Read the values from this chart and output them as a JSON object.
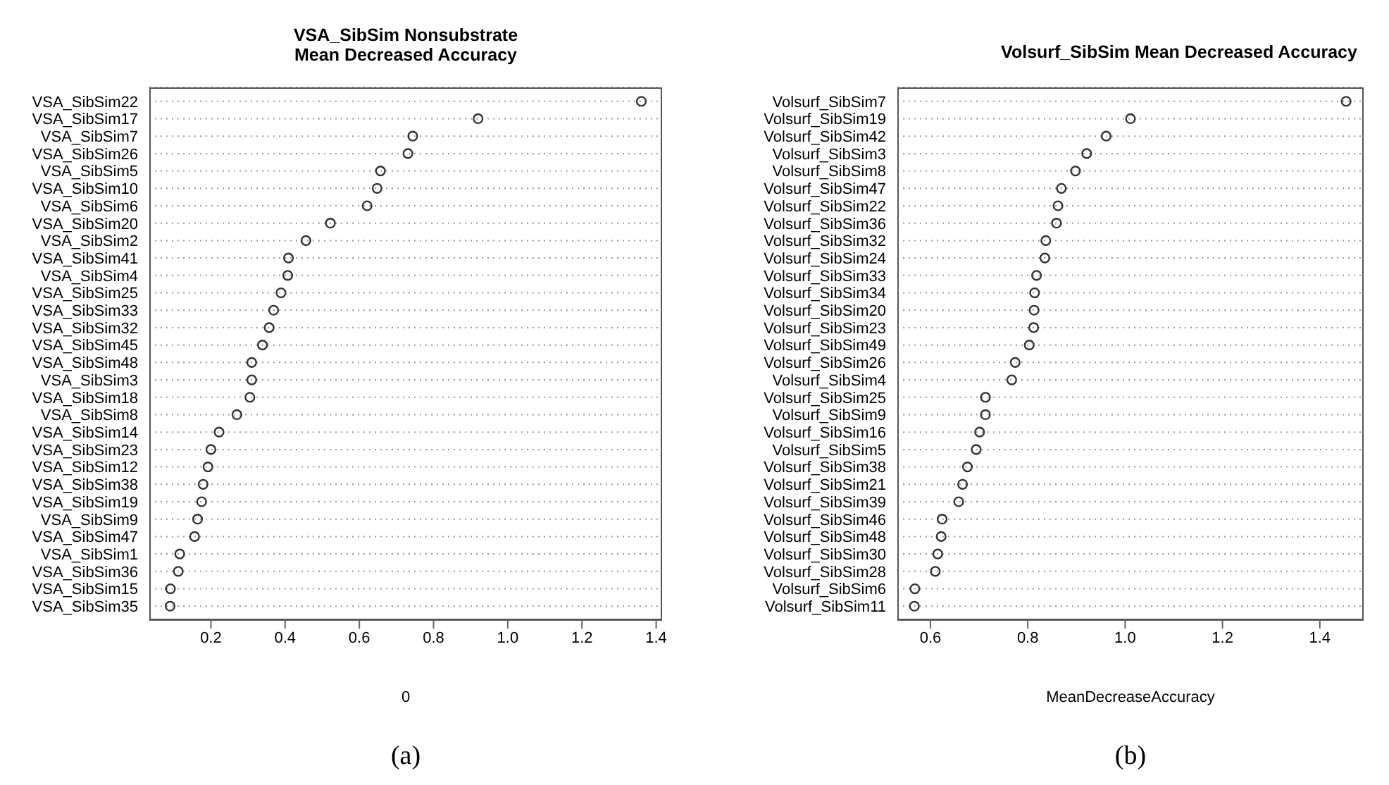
{
  "chart_data": [
    {
      "type": "scatter",
      "orientation": "horizontal",
      "title": "VSA_SibSim Nonsubstrate Mean Decreased Accuracy",
      "xlabel": "0",
      "annotations": [
        "(a)"
      ],
      "marker": "circle",
      "grid": "y",
      "color": "#333333",
      "categories": [
        "VSA_SibSim22",
        "VSA_SibSim17",
        "VSA_SibSim7",
        "VSA_SibSim26",
        "VSA_SibSim5",
        "VSA_SibSim10",
        "VSA_SibSim6",
        "VSA_SibSim20",
        "VSA_SibSim2",
        "VSA_SibSim41",
        "VSA_SibSim4",
        "VSA_SibSim25",
        "VSA_SibSim33",
        "VSA_SibSim32",
        "VSA_SibSim45",
        "VSA_SibSim48",
        "VSA_SibSim3",
        "VSA_SibSim18",
        "VSA_SibSim8",
        "VSA_SibSim14",
        "VSA_SibSim23",
        "VSA_SibSim12",
        "VSA_SibSim38",
        "VSA_SibSim19",
        "VSA_SibSim9",
        "VSA_SibSim47",
        "VSA_SibSim1",
        "VSA_SibSim36",
        "VSA_SibSim15",
        "VSA_SibSim35"
      ],
      "values": [
        1.36,
        0.92,
        0.744,
        0.731,
        0.657,
        0.648,
        0.621,
        0.522,
        0.456,
        0.409,
        0.407,
        0.389,
        0.369,
        0.357,
        0.339,
        0.31,
        0.31,
        0.305,
        0.27,
        0.222,
        0.2,
        0.192,
        0.179,
        0.175,
        0.164,
        0.156,
        0.116,
        0.112,
        0.091,
        0.09
      ],
      "xlim": [
        0.034,
        1.416
      ],
      "xticks": [
        0.2,
        0.4,
        0.6,
        0.8,
        {
          "value": 1,
          "label": "1.0"
        },
        1.2,
        1.4
      ]
    },
    {
      "type": "scatter",
      "orientation": "horizontal",
      "title": "Volsurf_SibSim Mean Decreased Accuracy",
      "xlabel": "MeanDecreaseAccuracy",
      "annotations": [
        "(b)"
      ],
      "marker": "circle",
      "grid": "y",
      "color": "#333333",
      "categories": [
        "Volsurf_SibSim7",
        "Volsurf_SibSim19",
        "Volsurf_SibSim42",
        "Volsurf_SibSim3",
        "Volsurf_SibSim8",
        "Volsurf_SibSim47",
        "Volsurf_SibSim22",
        "Volsurf_SibSim36",
        "Volsurf_SibSim32",
        "Volsurf_SibSim24",
        "Volsurf_SibSim33",
        "Volsurf_SibSim34",
        "Volsurf_SibSim20",
        "Volsurf_SibSim23",
        "Volsurf_SibSim49",
        "Volsurf_SibSim26",
        "Volsurf_SibSim4",
        "Volsurf_SibSim25",
        "Volsurf_SibSim9",
        "Volsurf_SibSim16",
        "Volsurf_SibSim5",
        "Volsurf_SibSim38",
        "Volsurf_SibSim21",
        "Volsurf_SibSim39",
        "Volsurf_SibSim46",
        "Volsurf_SibSim48",
        "Volsurf_SibSim30",
        "Volsurf_SibSim28",
        "Volsurf_SibSim6",
        "Volsurf_SibSim11"
      ],
      "values": [
        1.454,
        1.011,
        0.961,
        0.921,
        0.898,
        0.869,
        0.862,
        0.859,
        0.837,
        0.835,
        0.818,
        0.814,
        0.813,
        0.812,
        0.803,
        0.774,
        0.767,
        0.713,
        0.713,
        0.701,
        0.694,
        0.676,
        0.666,
        0.658,
        0.624,
        0.622,
        0.615,
        0.61,
        0.568,
        0.567
      ],
      "xlim": [
        0.532,
        1.49
      ],
      "xticks": [
        0.6,
        0.8,
        {
          "value": 1,
          "label": "1.0"
        },
        1.2,
        1.4
      ]
    }
  ]
}
